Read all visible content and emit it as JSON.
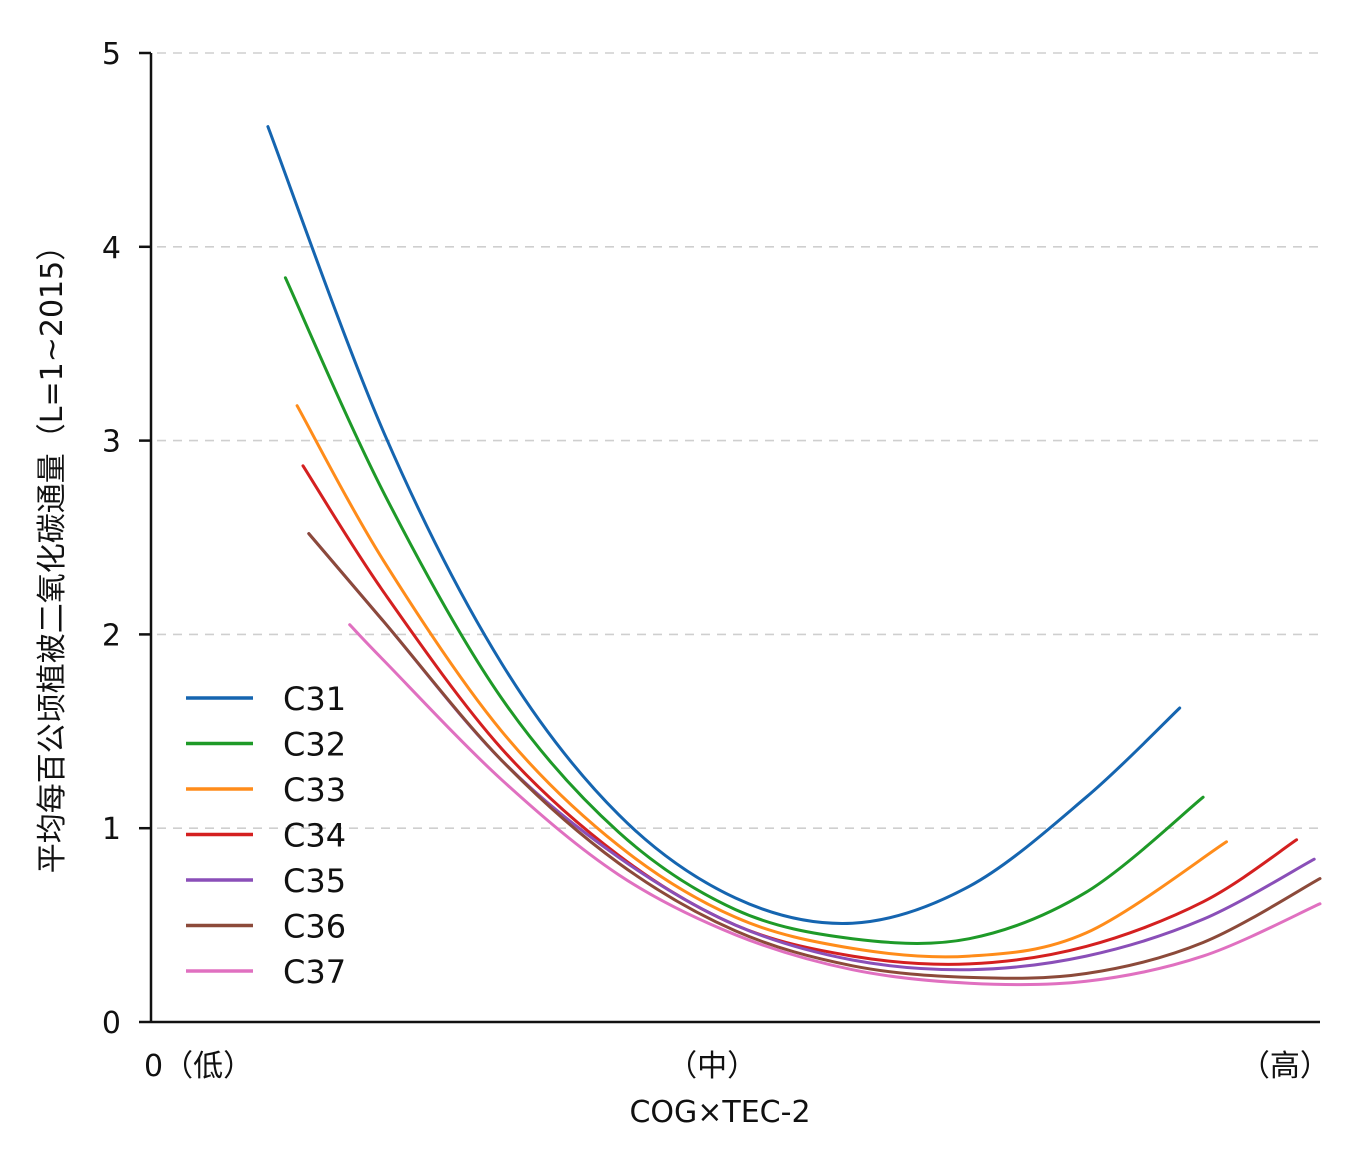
{
  "chart_data": {
    "type": "line",
    "title": "",
    "xlabel": "COG×TEC-2",
    "ylabel": "平均每百公顷植被二氧化碳通量（L=1~2015）",
    "xlim": [
      0,
      1
    ],
    "ylim": [
      0,
      5
    ],
    "x_tick_labels": [
      {
        "x": 0.0,
        "label": "0（低）"
      },
      {
        "x": 0.48,
        "label": "（中）"
      },
      {
        "x": 0.97,
        "label": "（高）"
      }
    ],
    "y_ticks": [
      0,
      1,
      2,
      3,
      4,
      5
    ],
    "y_tick_labels": [
      "0",
      "1",
      "2",
      "3",
      "4",
      "5"
    ],
    "grid": "horizontal dashed",
    "legend_position": "lower-left",
    "series": [
      {
        "name": "C31",
        "color": "#1565b0",
        "x": [
          0.1,
          0.2,
          0.3,
          0.4,
          0.5,
          0.6,
          0.7,
          0.8,
          0.88
        ],
        "y": [
          4.62,
          3.03,
          1.85,
          1.07,
          0.64,
          0.51,
          0.7,
          1.16,
          1.62
        ]
      },
      {
        "name": "C32",
        "color": "#1e9a28",
        "x": [
          0.115,
          0.2,
          0.3,
          0.4,
          0.5,
          0.6,
          0.7,
          0.8,
          0.9
        ],
        "y": [
          3.84,
          2.72,
          1.67,
          0.98,
          0.58,
          0.43,
          0.43,
          0.67,
          1.16
        ]
      },
      {
        "name": "C33",
        "color": "#ff8c1a",
        "x": [
          0.125,
          0.2,
          0.3,
          0.4,
          0.5,
          0.6,
          0.7,
          0.8,
          0.92
        ],
        "y": [
          3.18,
          2.37,
          1.5,
          0.91,
          0.54,
          0.38,
          0.34,
          0.46,
          0.93
        ]
      },
      {
        "name": "C34",
        "color": "#d42020",
        "x": [
          0.13,
          0.2,
          0.3,
          0.4,
          0.5,
          0.6,
          0.7,
          0.8,
          0.9,
          0.98
        ],
        "y": [
          2.87,
          2.21,
          1.41,
          0.86,
          0.5,
          0.34,
          0.3,
          0.39,
          0.62,
          0.94
        ]
      },
      {
        "name": "C35",
        "color": "#8a4fb8",
        "x": [
          0.135,
          0.2,
          0.3,
          0.4,
          0.5,
          0.6,
          0.7,
          0.8,
          0.9,
          0.995
        ],
        "y": [
          2.52,
          2.06,
          1.35,
          0.85,
          0.5,
          0.32,
          0.27,
          0.34,
          0.53,
          0.84
        ]
      },
      {
        "name": "C36",
        "color": "#8c4a3a",
        "x": [
          0.135,
          0.2,
          0.3,
          0.4,
          0.5,
          0.6,
          0.7,
          0.8,
          0.9,
          1.0
        ],
        "y": [
          2.52,
          2.06,
          1.35,
          0.82,
          0.47,
          0.29,
          0.23,
          0.25,
          0.41,
          0.74
        ]
      },
      {
        "name": "C37",
        "color": "#e070c0",
        "x": [
          0.17,
          0.2,
          0.3,
          0.4,
          0.5,
          0.6,
          0.7,
          0.8,
          0.9,
          1.0
        ],
        "y": [
          2.05,
          1.86,
          1.25,
          0.76,
          0.45,
          0.27,
          0.2,
          0.21,
          0.34,
          0.61
        ]
      }
    ]
  }
}
